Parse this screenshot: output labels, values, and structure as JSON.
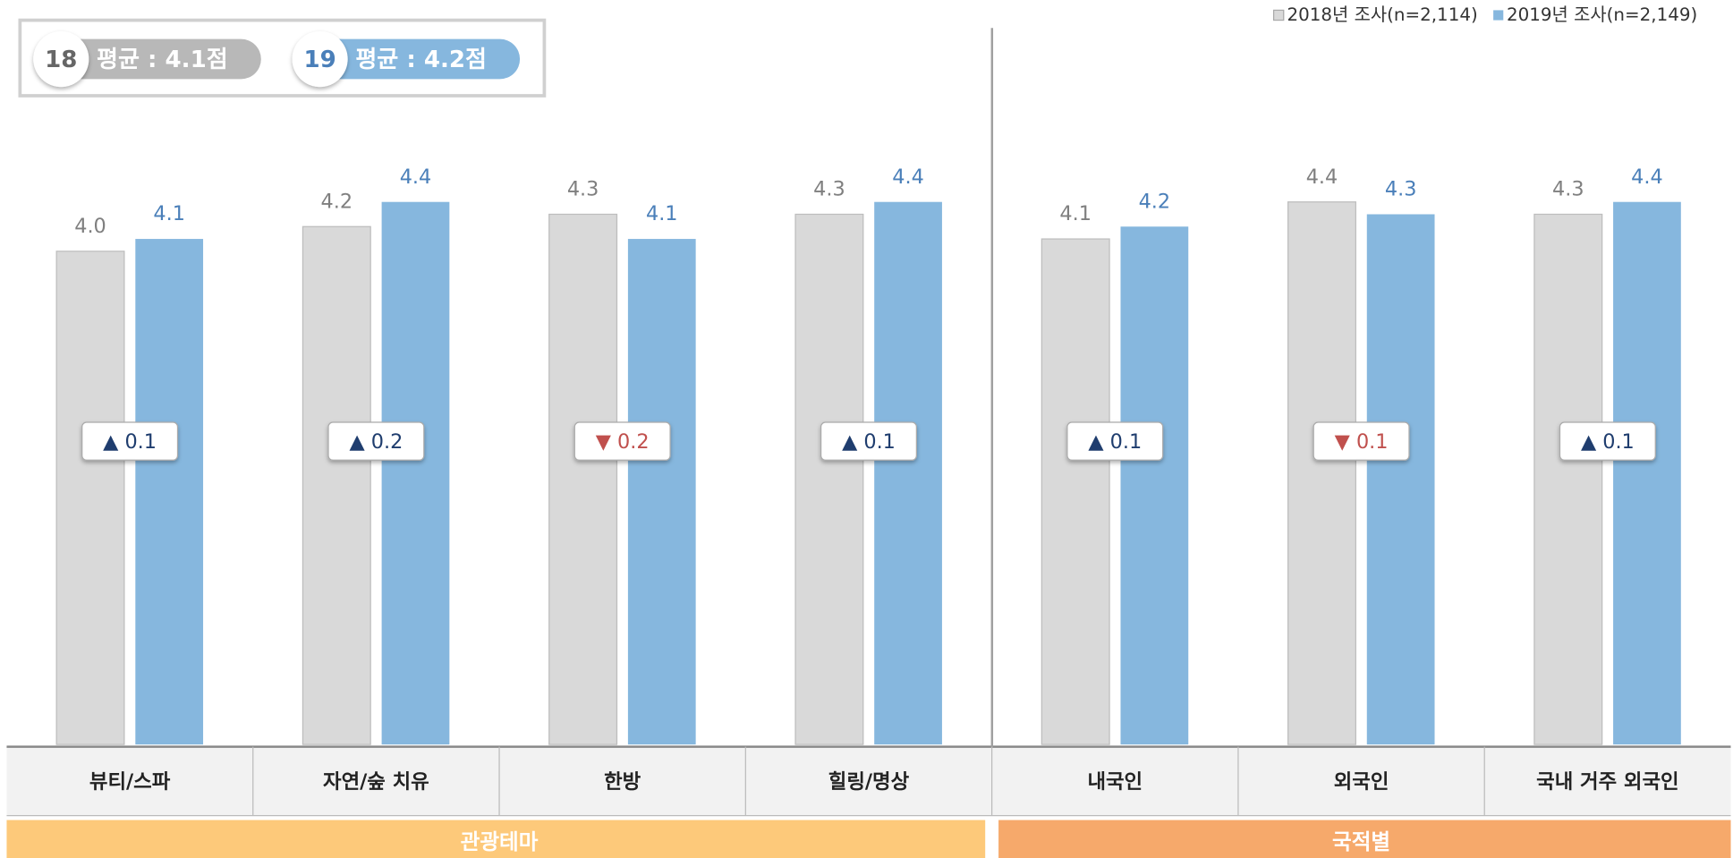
{
  "chart_data": {
    "type": "bar",
    "legend": [
      "2018년 조사(n=2,114)",
      "2019년 조사(n=2,149)"
    ],
    "badges": [
      {
        "year": "18",
        "text": "평균 : 4.1점",
        "color": "#b8b8b8"
      },
      {
        "year": "19",
        "text": "평균 : 4.2점",
        "color": "#86b7de"
      }
    ],
    "groups": [
      {
        "name": "관광테마",
        "color": "#fdc97a",
        "categories": [
          "뷰티/스파",
          "자연/숲 치유",
          "한방",
          "힐링/명상"
        ]
      },
      {
        "name": "국적별",
        "color": "#f6a96b",
        "categories": [
          "내국인",
          "외국인",
          "국내 거주 외국인"
        ]
      }
    ],
    "series": [
      {
        "name": "2018년 조사(n=2,114)",
        "color": "#d9d9d9",
        "label_color": "#7f7f7f",
        "values": [
          4.0,
          4.2,
          4.3,
          4.3,
          4.1,
          4.4,
          4.3
        ],
        "value_labels": [
          "4.0",
          "4.2",
          "4.3",
          "4.3",
          "4.1",
          "4.4",
          "4.3"
        ]
      },
      {
        "name": "2019년 조사(n=2,149)",
        "color": "#86b7de",
        "label_color": "#4a7fb9",
        "values": [
          4.1,
          4.4,
          4.1,
          4.4,
          4.2,
          4.3,
          4.4
        ],
        "value_labels": [
          "4.1",
          "4.4",
          "4.1",
          "4.4",
          "4.2",
          "4.3",
          "4.4"
        ]
      }
    ],
    "change_labels": [
      "▲ 0.1",
      "▲ 0.2",
      "▼ 0.2",
      "▲ 0.1",
      "▲ 0.1",
      "▼ 0.1",
      "▲ 0.1"
    ],
    "ylim": [
      0,
      5
    ]
  }
}
